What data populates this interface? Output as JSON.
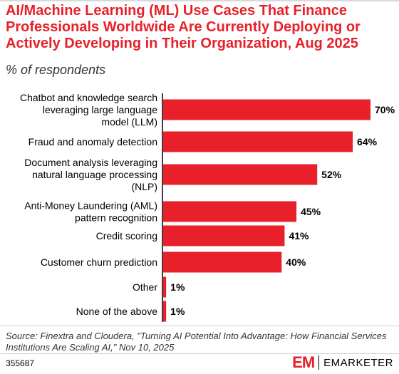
{
  "title": "AI/Machine Learning (ML) Use Cases That Finance Professionals Worldwide Are Currently Deploying or Actively Developing in Their Organization, Aug 2025",
  "subtitle": "% of respondents",
  "source": "Source: Finextra and Cloudera, \"Turning AI Potential Into Advantage: How Financial Services Institutions Are Scaling AI,\" Nov 10, 2025",
  "chart_id": "355687",
  "brand": {
    "logo": "EM",
    "name": "EMARKETER"
  },
  "colors": {
    "bar": "#e8202a",
    "title": "#e8202a",
    "axis": "#000000"
  },
  "chart_data": {
    "type": "bar",
    "orientation": "horizontal",
    "categories": [
      [
        "Chatbot and knowledge search",
        "leveraging large language",
        "model (LLM)"
      ],
      [
        "Fraud and anomaly detection"
      ],
      [
        "Document analysis leveraging",
        "natural language processing",
        "(NLP)"
      ],
      [
        "Anti-Money Laundering (AML)",
        "pattern recognition"
      ],
      [
        "Credit scoring"
      ],
      [
        "Customer churn prediction"
      ],
      [
        "Other"
      ],
      [
        "None of the above"
      ]
    ],
    "values": [
      70,
      64,
      52,
      45,
      41,
      40,
      1,
      1
    ],
    "value_labels": [
      "70%",
      "64%",
      "52%",
      "45%",
      "41%",
      "40%",
      "1%",
      "1%"
    ],
    "xlim": [
      0,
      70
    ],
    "grid": false,
    "legend": "none"
  }
}
